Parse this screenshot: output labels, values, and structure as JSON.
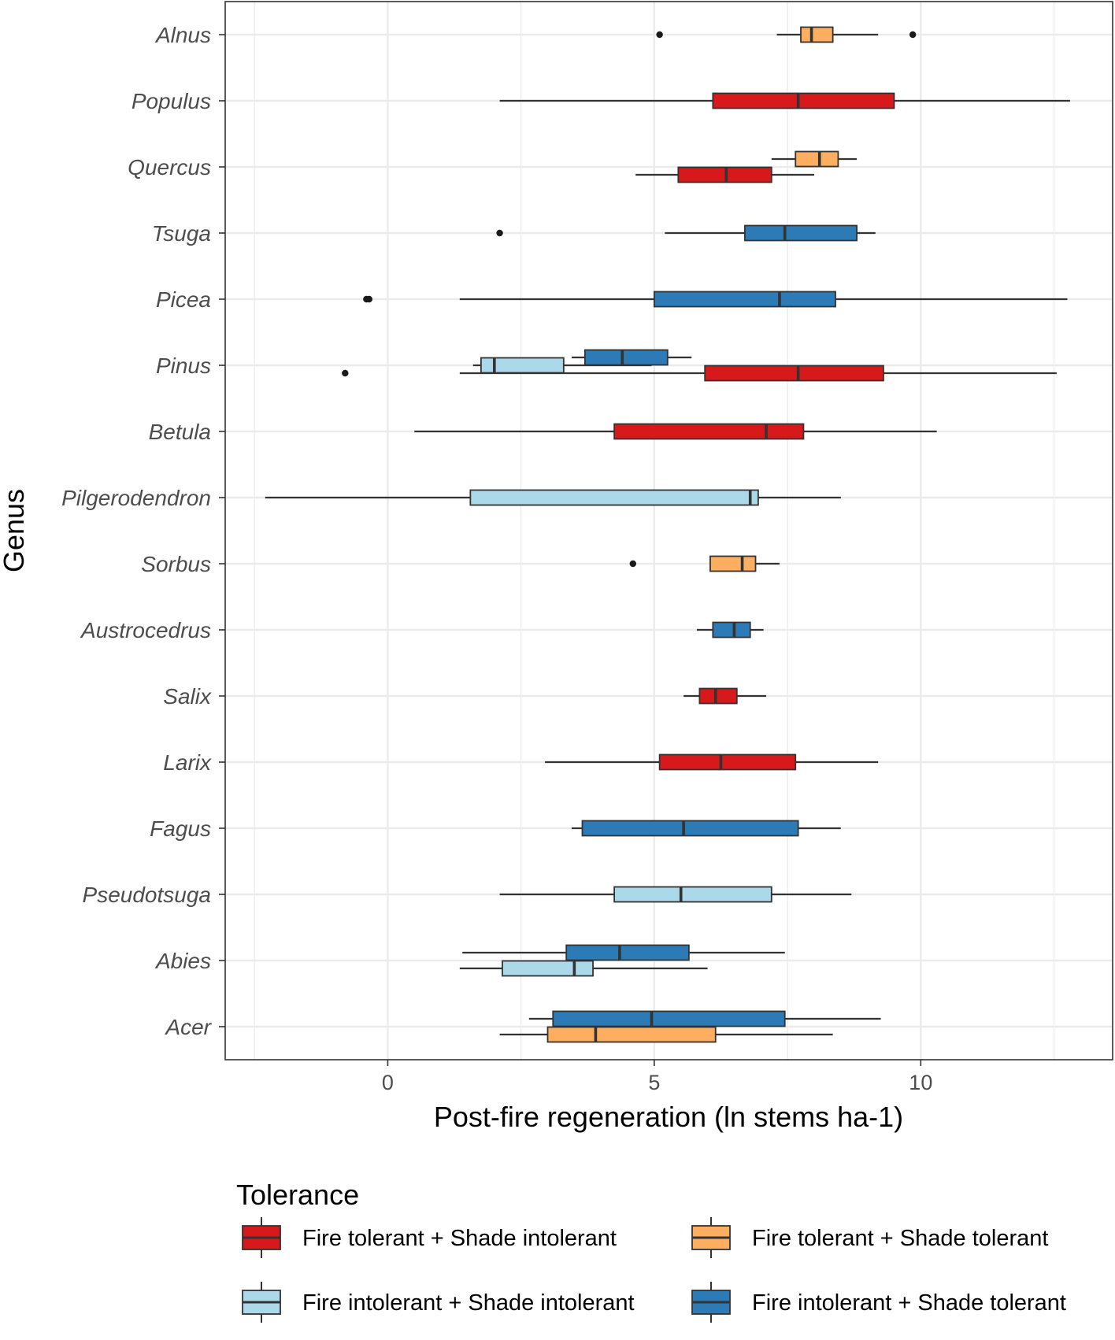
{
  "chart_data": {
    "type": "boxplot",
    "orientation": "horizontal",
    "title": "",
    "xlabel": "Post-fire regeneration (ln stems ha-1)",
    "ylabel": "Genus",
    "xlim": [
      -3.05,
      13.6
    ],
    "xticks": [
      0,
      5,
      10
    ],
    "xtick_labels": [
      "0",
      "5",
      "10"
    ],
    "grid": true,
    "genera": [
      "Alnus",
      "Populus",
      "Quercus",
      "Tsuga",
      "Picea",
      "Pinus",
      "Betula",
      "Pilgerodendron",
      "Sorbus",
      "Austrocedrus",
      "Salix",
      "Larix",
      "Fagus",
      "Pseudotsuga",
      "Abies",
      "Acer"
    ],
    "legend": {
      "title": "Tolerance",
      "position": "bottom",
      "entries": [
        {
          "key": "fti",
          "label": "Fire tolerant + Shade intolerant",
          "color": "#d7191c"
        },
        {
          "key": "ftt",
          "label": "Fire tolerant + Shade tolerant",
          "color": "#fdae61"
        },
        {
          "key": "fii",
          "label": "Fire intolerant + Shade intolerant",
          "color": "#abd9e9"
        },
        {
          "key": "fit",
          "label": "Fire intolerant + Shade tolerant",
          "color": "#2c7bb6"
        }
      ]
    },
    "boxes": [
      {
        "genus": "Alnus",
        "group": "ftt",
        "dodge": 0,
        "whislo": 7.3,
        "q1": 7.75,
        "med": 7.95,
        "q3": 8.35,
        "whishi": 9.2,
        "outliers": [
          5.1,
          9.85
        ]
      },
      {
        "genus": "Populus",
        "group": "fti",
        "dodge": 0,
        "whislo": 2.1,
        "q1": 6.1,
        "med": 7.7,
        "q3": 9.5,
        "whishi": 12.8,
        "outliers": []
      },
      {
        "genus": "Quercus",
        "group": "ftt",
        "dodge": -1,
        "whislo": 7.2,
        "q1": 7.65,
        "med": 8.1,
        "q3": 8.45,
        "whishi": 8.8,
        "outliers": []
      },
      {
        "genus": "Quercus",
        "group": "fti",
        "dodge": 1,
        "whislo": 4.65,
        "q1": 5.45,
        "med": 6.35,
        "q3": 7.2,
        "whishi": 8.0,
        "outliers": []
      },
      {
        "genus": "Tsuga",
        "group": "fit",
        "dodge": 0,
        "whislo": 5.2,
        "q1": 6.7,
        "med": 7.45,
        "q3": 8.8,
        "whishi": 9.15,
        "outliers": [
          2.1
        ]
      },
      {
        "genus": "Picea",
        "group": "fit",
        "dodge": 0,
        "whislo": 1.35,
        "q1": 5.0,
        "med": 7.35,
        "q3": 8.4,
        "whishi": 12.75,
        "outliers": [
          -0.35,
          -0.4
        ]
      },
      {
        "genus": "Pinus",
        "group": "fit",
        "dodge": -1,
        "whislo": 3.45,
        "q1": 3.7,
        "med": 4.4,
        "q3": 5.25,
        "whishi": 5.7,
        "outliers": []
      },
      {
        "genus": "Pinus",
        "group": "fii",
        "dodge": 0,
        "whislo": 1.6,
        "q1": 1.75,
        "med": 2.0,
        "q3": 3.3,
        "whishi": 4.95,
        "outliers": []
      },
      {
        "genus": "Pinus",
        "group": "fti",
        "dodge": 1,
        "whislo": 1.35,
        "q1": 5.95,
        "med": 7.7,
        "q3": 9.3,
        "whishi": 12.55,
        "outliers": [
          -0.8
        ]
      },
      {
        "genus": "Betula",
        "group": "fti",
        "dodge": 0,
        "whislo": 0.5,
        "q1": 4.25,
        "med": 7.1,
        "q3": 7.8,
        "whishi": 10.3,
        "outliers": []
      },
      {
        "genus": "Pilgerodendron",
        "group": "fii",
        "dodge": 0,
        "whislo": -2.3,
        "q1": 1.55,
        "med": 6.8,
        "q3": 6.95,
        "whishi": 8.5,
        "outliers": []
      },
      {
        "genus": "Sorbus",
        "group": "ftt",
        "dodge": 0,
        "whislo": 6.05,
        "q1": 6.05,
        "med": 6.65,
        "q3": 6.9,
        "whishi": 7.35,
        "outliers": [
          4.6
        ]
      },
      {
        "genus": "Austrocedrus",
        "group": "fit",
        "dodge": 0,
        "whislo": 5.8,
        "q1": 6.1,
        "med": 6.5,
        "q3": 6.8,
        "whishi": 7.05,
        "outliers": []
      },
      {
        "genus": "Salix",
        "group": "fti",
        "dodge": 0,
        "whislo": 5.55,
        "q1": 5.85,
        "med": 6.15,
        "q3": 6.55,
        "whishi": 7.1,
        "outliers": []
      },
      {
        "genus": "Larix",
        "group": "fti",
        "dodge": 0,
        "whislo": 2.95,
        "q1": 5.1,
        "med": 6.25,
        "q3": 7.65,
        "whishi": 9.2,
        "outliers": []
      },
      {
        "genus": "Fagus",
        "group": "fit",
        "dodge": 0,
        "whislo": 3.45,
        "q1": 3.65,
        "med": 5.55,
        "q3": 7.7,
        "whishi": 8.5,
        "outliers": []
      },
      {
        "genus": "Pseudotsuga",
        "group": "fii",
        "dodge": 0,
        "whislo": 2.1,
        "q1": 4.25,
        "med": 5.5,
        "q3": 7.2,
        "whishi": 8.7,
        "outliers": []
      },
      {
        "genus": "Abies",
        "group": "fit",
        "dodge": -1,
        "whislo": 1.4,
        "q1": 3.35,
        "med": 4.35,
        "q3": 5.65,
        "whishi": 7.45,
        "outliers": []
      },
      {
        "genus": "Abies",
        "group": "fii",
        "dodge": 1,
        "whislo": 1.35,
        "q1": 2.15,
        "med": 3.5,
        "q3": 3.85,
        "whishi": 6.0,
        "outliers": []
      },
      {
        "genus": "Acer",
        "group": "fit",
        "dodge": -1,
        "whislo": 2.65,
        "q1": 3.1,
        "med": 4.95,
        "q3": 7.45,
        "whishi": 9.25,
        "outliers": []
      },
      {
        "genus": "Acer",
        "group": "ftt",
        "dodge": 1,
        "whislo": 2.1,
        "q1": 3.0,
        "med": 3.9,
        "q3": 6.15,
        "whishi": 8.35,
        "outliers": []
      }
    ]
  }
}
